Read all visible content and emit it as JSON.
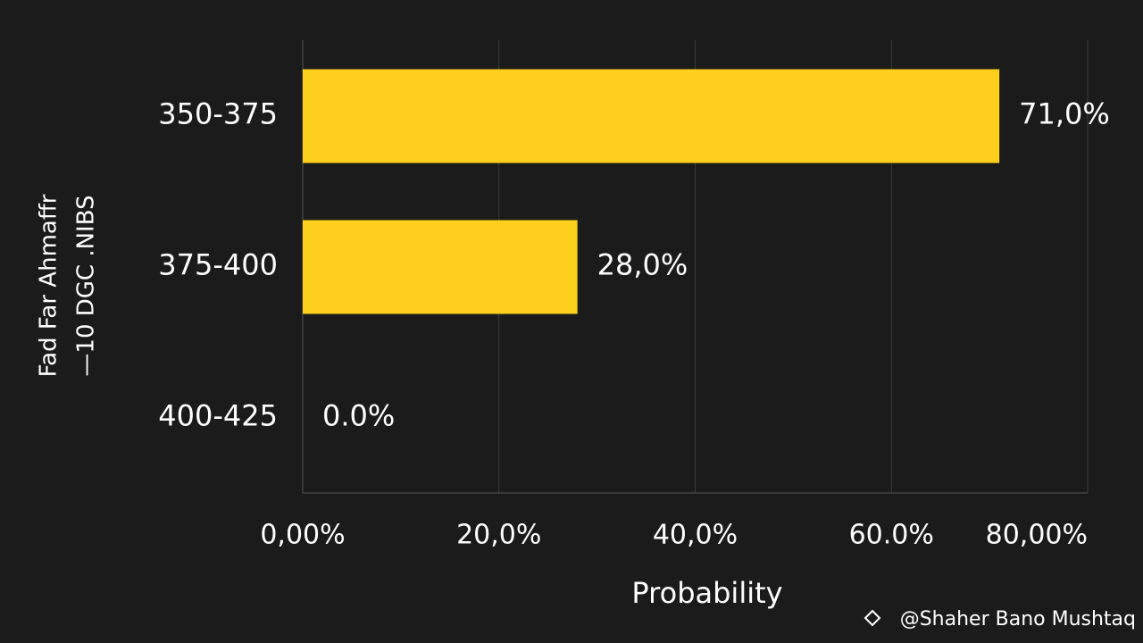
{
  "chart_data": {
    "type": "barh",
    "y_label_lines": [
      "Fad Far Ahmaffr",
      "—10 DGC .NIBS"
    ],
    "x_label": "Probability",
    "categories": [
      "350-375",
      "375-400",
      "400-425"
    ],
    "values": [
      71,
      28,
      0
    ],
    "value_labels": [
      "71,0%",
      "28,0%",
      "0.0%"
    ],
    "color": "#fdd01c",
    "xlim": [
      0,
      80
    ],
    "xticks": [
      {
        "value": 0,
        "label": "0,00%"
      },
      {
        "value": 20,
        "label": "20,0%"
      },
      {
        "value": 40,
        "label": "40,0%"
      },
      {
        "value": 60,
        "label": "60.0%"
      },
      {
        "value": 80,
        "label": "80,00%"
      }
    ],
    "grid": true,
    "watermark": "@Shaher Bano Mushtaq"
  }
}
